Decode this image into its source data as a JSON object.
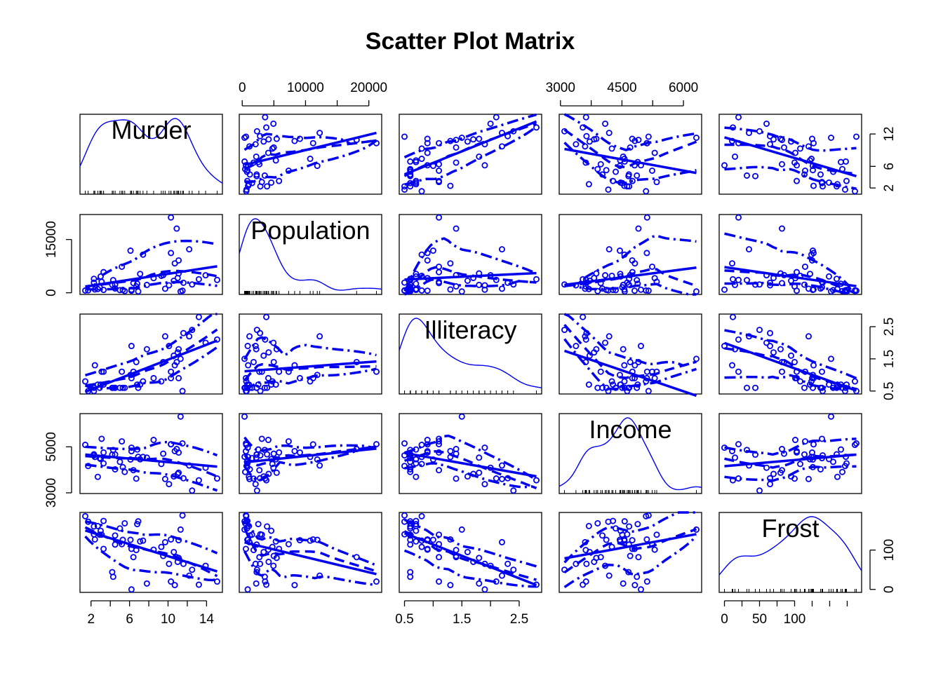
{
  "chart_data": {
    "type": "scatter",
    "subtype": "scatter-plot-matrix",
    "title": "Scatter Plot Matrix",
    "variables": [
      "Murder",
      "Population",
      "Illiteracy",
      "Income",
      "Frost"
    ],
    "ranges": {
      "Murder": [
        1.4,
        15.1
      ],
      "Population": [
        365,
        21198
      ],
      "Illiteracy": [
        0.5,
        2.8
      ],
      "Income": [
        3098,
        6315
      ],
      "Frost": [
        0,
        188
      ]
    },
    "axis_ticks": {
      "Murder": [
        2,
        6,
        10,
        14
      ],
      "Population": [
        0,
        10000,
        20000
      ],
      "Illiteracy": [
        0.5,
        1.5,
        2.5
      ],
      "Income": [
        3000,
        4500,
        6000
      ],
      "Frost": [
        0,
        50,
        100
      ]
    },
    "axis_tick_labels": {
      "Murder": [
        "2",
        "6",
        "10",
        "14"
      ],
      "Population": [
        "0",
        "10000",
        "20000"
      ],
      "Illiteracy": [
        "0.5",
        "1.5",
        "2.5"
      ],
      "Income": [
        "3000",
        "4500",
        "6000"
      ],
      "Frost": [
        "0",
        "50",
        "100"
      ]
    },
    "right_axis_ticks": {
      "Murder": [
        2,
        6,
        12
      ],
      "Illiteracy": [
        0.5,
        1.5,
        2.5
      ],
      "Frost": [
        0,
        100
      ]
    },
    "right_axis_tick_labels": {
      "Murder": [
        "2",
        "6",
        "12"
      ],
      "Illiteracy": [
        "0.5",
        "1.5",
        "2.5"
      ],
      "Frost": [
        "0",
        "100"
      ]
    },
    "left_axis_ticks": {
      "Population": [
        0,
        15000
      ],
      "Income": [
        3000,
        5000
      ]
    },
    "left_axis_tick_labels": {
      "Population": [
        "0",
        "15000"
      ],
      "Income": [
        "3000",
        "5000"
      ]
    },
    "top_axis_variables": [
      "Population",
      "Income"
    ],
    "bottom_axis_variables": [
      "Murder",
      "Illiteracy",
      "Frost"
    ],
    "diagonal": "density",
    "off_diagonal": "scatter with linear fit, loess smooth and spread lines",
    "grid": false,
    "points": {
      "Murder": [
        15.1,
        11.3,
        7.8,
        10.1,
        10.3,
        6.8,
        3.1,
        6.2,
        10.7,
        13.9,
        6.2,
        5.3,
        10.3,
        7.1,
        2.3,
        4.5,
        10.6,
        13.2,
        2.7,
        8.5,
        3.3,
        11.1,
        2.3,
        12.5,
        9.3,
        5.0,
        2.9,
        11.5,
        3.3,
        5.2,
        9.7,
        10.9,
        11.1,
        1.4,
        7.4,
        6.4,
        4.2,
        6.1,
        2.4,
        11.6,
        1.7,
        11.0,
        12.2,
        4.5,
        5.5,
        9.5,
        4.3,
        6.7,
        3.0,
        6.9
      ],
      "Population": [
        3615,
        365,
        2212,
        2110,
        21198,
        2541,
        3100,
        579,
        8277,
        4931,
        868,
        813,
        11197,
        5313,
        2861,
        2280,
        3387,
        3806,
        1058,
        4122,
        5814,
        9111,
        3921,
        2341,
        4767,
        746,
        1544,
        590,
        812,
        7333,
        1144,
        18076,
        5441,
        637,
        10735,
        2715,
        2284,
        11860,
        931,
        2816,
        681,
        4173,
        12237,
        1203,
        472,
        4981,
        3559,
        1799,
        4589,
        376
      ],
      "Illiteracy": [
        2.1,
        1.5,
        1.8,
        1.9,
        1.1,
        0.7,
        1.1,
        0.9,
        1.3,
        2.0,
        1.9,
        0.6,
        0.9,
        0.7,
        0.5,
        0.6,
        1.6,
        2.8,
        0.7,
        0.9,
        1.1,
        0.9,
        0.6,
        2.4,
        0.8,
        0.6,
        0.6,
        0.5,
        0.7,
        1.1,
        2.2,
        1.4,
        1.8,
        0.8,
        0.8,
        1.1,
        0.6,
        1.0,
        1.3,
        2.3,
        0.5,
        1.7,
        2.2,
        0.6,
        0.6,
        1.4,
        0.6,
        1.4,
        0.7,
        0.6
      ],
      "Income": [
        3624,
        6315,
        4530,
        3378,
        5114,
        4884,
        5348,
        4809,
        4815,
        4091,
        4963,
        4119,
        5107,
        4458,
        4628,
        4669,
        3712,
        3545,
        3694,
        5299,
        4755,
        4751,
        4675,
        3098,
        4254,
        4347,
        4508,
        5149,
        4281,
        5237,
        3601,
        4903,
        3875,
        5087,
        4561,
        3983,
        4660,
        4449,
        4558,
        3635,
        4167,
        3821,
        4188,
        4022,
        3907,
        4701,
        4864,
        3617,
        4468,
        4566
      ],
      "Frost": [
        20,
        152,
        15,
        65,
        20,
        166,
        139,
        103,
        11,
        60,
        0,
        126,
        127,
        122,
        140,
        114,
        95,
        12,
        161,
        101,
        103,
        125,
        160,
        50,
        108,
        155,
        139,
        188,
        174,
        115,
        120,
        82,
        80,
        186,
        124,
        82,
        44,
        126,
        127,
        65,
        172,
        70,
        35,
        137,
        168,
        85,
        32,
        100,
        149,
        173
      ]
    }
  }
}
